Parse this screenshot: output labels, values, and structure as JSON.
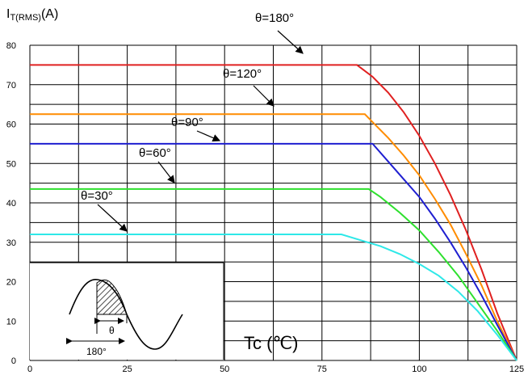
{
  "chart_data": {
    "type": "line",
    "title": "",
    "ylabel_main": "I",
    "ylabel_sub": "T(RMS)",
    "ylabel_unit": "(A)",
    "xlabel": "Tc (℃)",
    "xlim": [
      0,
      125
    ],
    "ylim": [
      0,
      80
    ],
    "x_ticks": [
      "0",
      "25",
      "50",
      "75",
      "100",
      "125"
    ],
    "y_ticks": [
      "0",
      "10",
      "20",
      "30",
      "40",
      "50",
      "60",
      "70",
      "80"
    ],
    "grid": true,
    "series": [
      {
        "name": "θ=180°",
        "color": "#e02020",
        "x": [
          0,
          84,
          88,
          92,
          96,
          100,
          104,
          108,
          112,
          116,
          120,
          125
        ],
        "y": [
          75,
          75,
          72,
          68,
          63,
          57,
          50,
          42,
          33,
          23,
          12,
          0
        ]
      },
      {
        "name": "θ=120°",
        "color": "#ff8c00",
        "x": [
          0,
          86,
          88,
          92,
          96,
          100,
          104,
          108,
          112,
          116,
          120,
          125
        ],
        "y": [
          62.5,
          62.5,
          60.5,
          56.5,
          52,
          47,
          41,
          34.5,
          27,
          19,
          10,
          0
        ]
      },
      {
        "name": "θ=90°",
        "color": "#1f1fd0",
        "x": [
          0,
          88,
          92,
          96,
          100,
          104,
          108,
          112,
          116,
          120,
          125
        ],
        "y": [
          55,
          55,
          50.5,
          46,
          41.5,
          36,
          30,
          23.5,
          16.5,
          9,
          0
        ]
      },
      {
        "name": "θ=60°",
        "color": "#2ee02e",
        "x": [
          0,
          87,
          90,
          95,
          100,
          105,
          110,
          115,
          120,
          125
        ],
        "y": [
          43.5,
          43.5,
          41.5,
          37.5,
          33,
          27.5,
          21.5,
          14.5,
          7.5,
          0
        ]
      },
      {
        "name": "θ=30°",
        "color": "#2ee8e8",
        "x": [
          0,
          80,
          85,
          90,
          95,
          100,
          105,
          110,
          115,
          120,
          125
        ],
        "y": [
          32,
          32,
          30.5,
          29,
          27,
          24.5,
          21.5,
          17.5,
          12.5,
          6.5,
          0
        ]
      }
    ],
    "annotations": [
      {
        "text": "θ=180°",
        "series": 0
      },
      {
        "text": "θ=120°",
        "series": 1
      },
      {
        "text": "θ=90°",
        "series": 2
      },
      {
        "text": "θ=60°",
        "series": 3
      },
      {
        "text": "θ=30°",
        "series": 4
      }
    ],
    "inset": {
      "theta_label": "θ",
      "period_label": "180°"
    }
  }
}
